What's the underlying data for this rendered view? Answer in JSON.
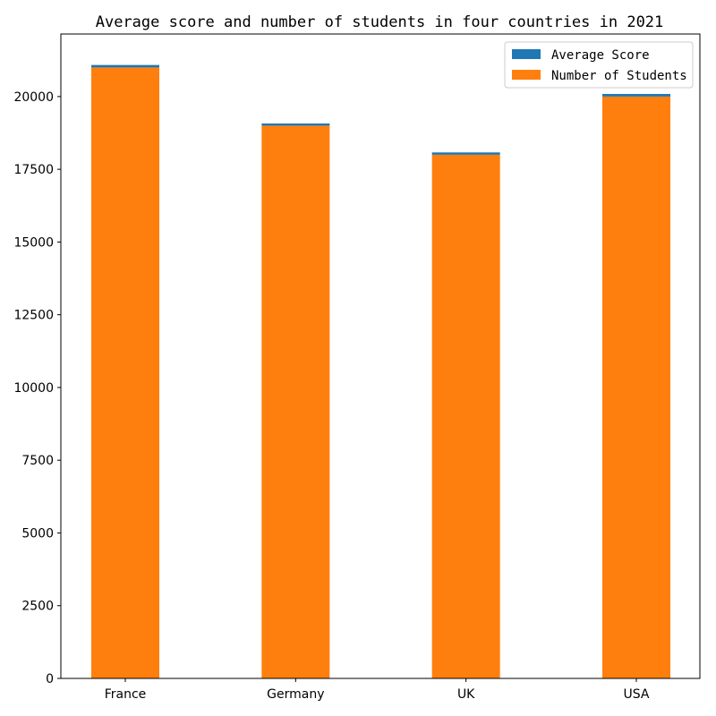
{
  "chart_data": {
    "type": "bar",
    "stacked": true,
    "title": "Average score and number of students in four countries in 2021",
    "xlabel": "",
    "ylabel": "",
    "categories": [
      "France",
      "Germany",
      "UK",
      "USA"
    ],
    "series": [
      {
        "name": "Number of Students",
        "values": [
          21000,
          19000,
          18000,
          20000
        ],
        "color": "#ff7f0e"
      },
      {
        "name": "Average Score",
        "values": [
          85,
          75,
          80,
          90
        ],
        "color": "#1f77b4"
      }
    ],
    "ylim": [
      0,
      22150
    ],
    "yticks": [
      0,
      2500,
      5000,
      7500,
      10000,
      12500,
      15000,
      17500,
      20000
    ],
    "grid": false,
    "legend": {
      "position": "top-right",
      "entries": [
        "Average Score",
        "Number of Students"
      ]
    }
  }
}
